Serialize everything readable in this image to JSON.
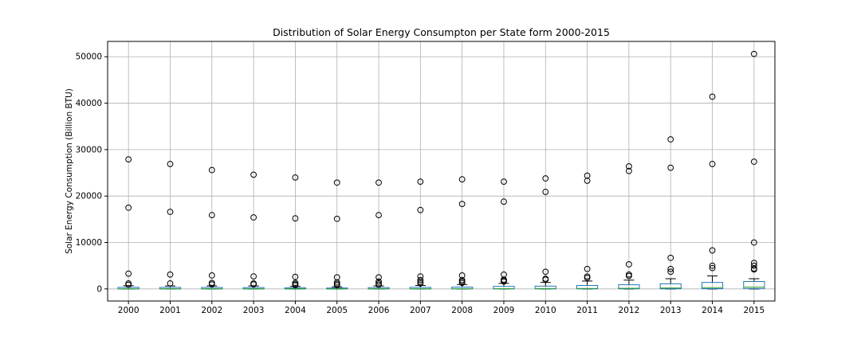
{
  "chart_data": {
    "type": "box",
    "title": "Distribution of Solar Energy Consumpton per State form 2000-2015",
    "xlabel": "",
    "ylabel": "Solar Energy Consumption (Billion BTU)",
    "ylim": [
      -2600,
      53300
    ],
    "yticks": [
      0,
      10000,
      20000,
      30000,
      40000,
      50000
    ],
    "ytick_labels": [
      "0",
      "10000",
      "20000",
      "30000",
      "40000",
      "50000"
    ],
    "grid": true,
    "categories": [
      "2000",
      "2001",
      "2002",
      "2003",
      "2004",
      "2005",
      "2006",
      "2007",
      "2008",
      "2009",
      "2010",
      "2011",
      "2012",
      "2013",
      "2014",
      "2015"
    ],
    "box_stats": [
      {
        "q1": 0,
        "median": 30,
        "q3": 350,
        "whisker_low": 0,
        "whisker_high": 700
      },
      {
        "q1": 0,
        "median": 30,
        "q3": 330,
        "whisker_low": 0,
        "whisker_high": 650
      },
      {
        "q1": 0,
        "median": 30,
        "q3": 320,
        "whisker_low": 0,
        "whisker_high": 650
      },
      {
        "q1": 0,
        "median": 30,
        "q3": 300,
        "whisker_low": 0,
        "whisker_high": 650
      },
      {
        "q1": 0,
        "median": 30,
        "q3": 250,
        "whisker_low": 0,
        "whisker_high": 550
      },
      {
        "q1": 0,
        "median": 30,
        "q3": 200,
        "whisker_low": 0,
        "whisker_high": 450
      },
      {
        "q1": 0,
        "median": 40,
        "q3": 300,
        "whisker_low": 0,
        "whisker_high": 650
      },
      {
        "q1": 0,
        "median": 50,
        "q3": 350,
        "whisker_low": 0,
        "whisker_high": 750
      },
      {
        "q1": 0,
        "median": 50,
        "q3": 400,
        "whisker_low": 0,
        "whisker_high": 950
      },
      {
        "q1": 10,
        "median": 60,
        "q3": 550,
        "whisker_low": 0,
        "whisker_high": 1200
      },
      {
        "q1": 10,
        "median": 80,
        "q3": 600,
        "whisker_low": 0,
        "whisker_high": 1400
      },
      {
        "q1": 20,
        "median": 100,
        "q3": 750,
        "whisker_low": 0,
        "whisker_high": 1700
      },
      {
        "q1": 30,
        "median": 150,
        "q3": 900,
        "whisker_low": 0,
        "whisker_high": 1900
      },
      {
        "q1": 40,
        "median": 200,
        "q3": 1100,
        "whisker_low": 0,
        "whisker_high": 2200
      },
      {
        "q1": 60,
        "median": 300,
        "q3": 1400,
        "whisker_low": 0,
        "whisker_high": 2800
      },
      {
        "q1": 80,
        "median": 400,
        "q3": 1600,
        "whisker_low": 0,
        "whisker_high": 2200
      }
    ],
    "outliers": [
      [
        27900,
        17500,
        3300,
        1200,
        900
      ],
      [
        26900,
        16600,
        3100,
        1200
      ],
      [
        25600,
        15900,
        2900,
        1300,
        1000
      ],
      [
        24600,
        15400,
        2700,
        1200,
        1000
      ],
      [
        24000,
        15200,
        2600,
        1300,
        1000,
        800
      ],
      [
        22900,
        15100,
        2500,
        1400,
        1100,
        800
      ],
      [
        22900,
        15900,
        2500,
        1600,
        1200,
        900
      ],
      [
        23100,
        17000,
        2700,
        1900,
        1500,
        1200
      ],
      [
        23600,
        18300,
        2900,
        1900,
        1600,
        1300
      ],
      [
        23100,
        18800,
        3100,
        2000,
        1800,
        1600
      ],
      [
        23800,
        20900,
        3700,
        2200,
        2000
      ],
      [
        24400,
        23300,
        4300,
        2700,
        2400
      ],
      [
        26400,
        25400,
        5300,
        3100,
        2800
      ],
      [
        32200,
        26100,
        6700,
        4300,
        3700
      ],
      [
        41400,
        26900,
        8300,
        5000,
        4500
      ],
      [
        50600,
        27400,
        10000,
        5600,
        5000,
        4400,
        4200
      ]
    ],
    "colors": {
      "box": "#1f77b4",
      "median": "#2ca02c",
      "grid": "#b0b0b0",
      "outlier": "#000000"
    }
  }
}
